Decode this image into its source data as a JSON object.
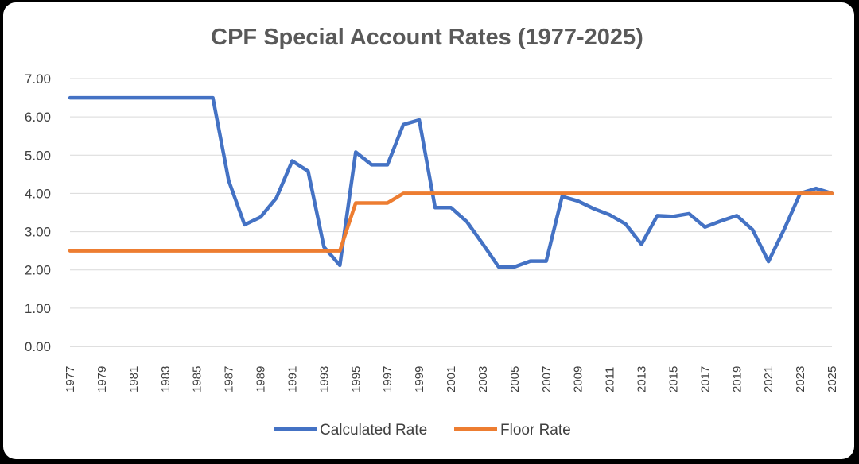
{
  "chart_data": {
    "type": "line",
    "title": "CPF Special Account Rates (1977-2025)",
    "xlabel": "",
    "ylabel": "",
    "ylim": [
      0,
      7
    ],
    "yticks": [
      "0.00",
      "1.00",
      "2.00",
      "3.00",
      "4.00",
      "5.00",
      "6.00",
      "7.00"
    ],
    "x": [
      1977,
      1978,
      1979,
      1980,
      1981,
      1982,
      1983,
      1984,
      1985,
      1986,
      1987,
      1988,
      1989,
      1990,
      1991,
      1992,
      1993,
      1994,
      1995,
      1996,
      1997,
      1998,
      1999,
      2000,
      2001,
      2002,
      2003,
      2004,
      2005,
      2006,
      2007,
      2008,
      2009,
      2010,
      2011,
      2012,
      2013,
      2014,
      2015,
      2016,
      2017,
      2018,
      2019,
      2020,
      2021,
      2022,
      2023,
      2024,
      2025
    ],
    "xtick_labels": [
      "1977",
      "1979",
      "1981",
      "1983",
      "1985",
      "1987",
      "1989",
      "1991",
      "1993",
      "1995",
      "1997",
      "1999",
      "2001",
      "2003",
      "2005",
      "2007",
      "2009",
      "2011",
      "2013",
      "2015",
      "2017",
      "2019",
      "2021",
      "2023",
      "2025"
    ],
    "grid": true,
    "legend_position": "bottom",
    "series": [
      {
        "name": "Calculated Rate",
        "color": "#4472C4",
        "values": [
          6.5,
          6.5,
          6.5,
          6.5,
          6.5,
          6.5,
          6.5,
          6.5,
          6.5,
          6.5,
          4.33,
          3.18,
          3.38,
          3.88,
          4.85,
          4.58,
          2.6,
          2.12,
          5.08,
          4.75,
          4.75,
          5.8,
          5.92,
          3.63,
          3.63,
          3.26,
          2.68,
          2.08,
          2.08,
          2.23,
          2.23,
          3.92,
          3.8,
          3.6,
          3.44,
          3.2,
          2.67,
          3.42,
          3.4,
          3.47,
          3.12,
          3.28,
          3.42,
          3.05,
          2.22,
          3.07,
          4.0,
          4.13,
          4.0
        ]
      },
      {
        "name": "Floor Rate",
        "color": "#ED7D31",
        "values": [
          2.5,
          2.5,
          2.5,
          2.5,
          2.5,
          2.5,
          2.5,
          2.5,
          2.5,
          2.5,
          2.5,
          2.5,
          2.5,
          2.5,
          2.5,
          2.5,
          2.5,
          2.5,
          3.75,
          3.75,
          3.75,
          4.0,
          4.0,
          4.0,
          4.0,
          4.0,
          4.0,
          4.0,
          4.0,
          4.0,
          4.0,
          4.0,
          4.0,
          4.0,
          4.0,
          4.0,
          4.0,
          4.0,
          4.0,
          4.0,
          4.0,
          4.0,
          4.0,
          4.0,
          4.0,
          4.0,
          4.0,
          4.0,
          4.0
        ]
      }
    ]
  }
}
